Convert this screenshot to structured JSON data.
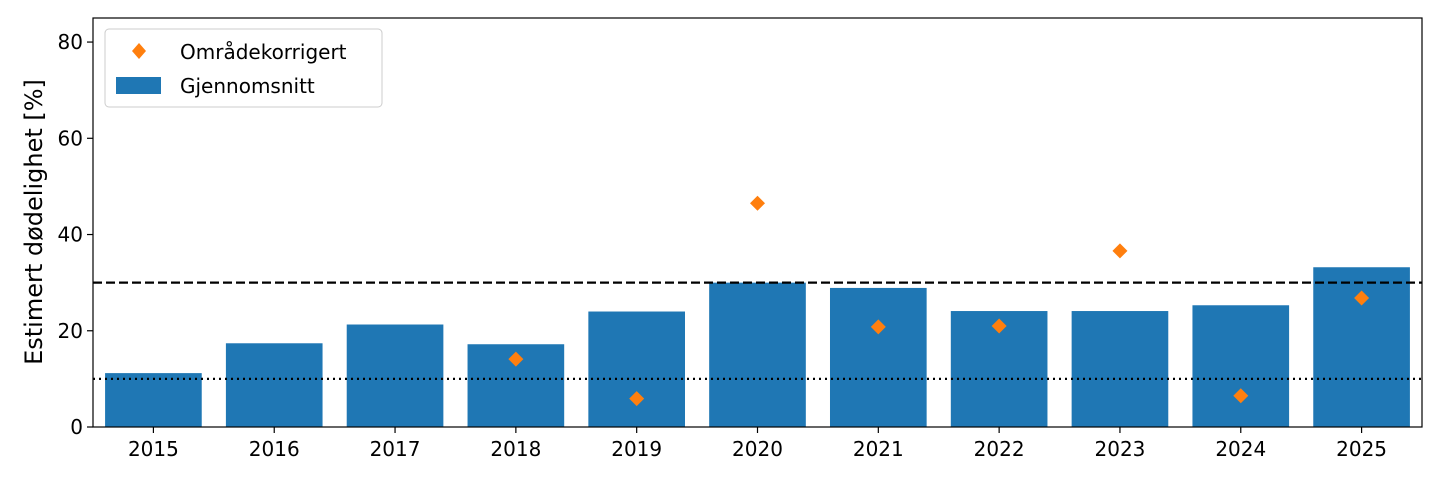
{
  "chart_data": {
    "type": "bar",
    "title": "",
    "xlabel": "",
    "ylabel": "Estimert dødelighet [%]",
    "ylim": [
      0,
      85
    ],
    "yticks": [
      0,
      20,
      40,
      60,
      80
    ],
    "categories": [
      "2015",
      "2016",
      "2017",
      "2018",
      "2019",
      "2020",
      "2021",
      "2022",
      "2023",
      "2024",
      "2025"
    ],
    "series": [
      {
        "name": "Gjennomsnitt",
        "kind": "bar",
        "color": "#1f77b4",
        "values": [
          11.2,
          17.4,
          21.3,
          17.2,
          24.0,
          30.0,
          28.9,
          24.1,
          24.1,
          25.3,
          33.2
        ]
      },
      {
        "name": "Områdekorrigert",
        "kind": "scatter",
        "marker": "diamond",
        "color": "#ff7f0e",
        "values": [
          null,
          null,
          null,
          14.1,
          5.9,
          46.5,
          20.8,
          21.0,
          36.6,
          6.5,
          26.8
        ]
      }
    ],
    "reference_lines": [
      {
        "y": 30,
        "style": "dashed",
        "color": "#000000"
      },
      {
        "y": 10,
        "style": "dotted",
        "color": "#000000"
      }
    ],
    "legend": {
      "placement": "top-left",
      "entries": [
        "Områdekorrigert",
        "Gjennomsnitt"
      ]
    },
    "grid": false
  }
}
